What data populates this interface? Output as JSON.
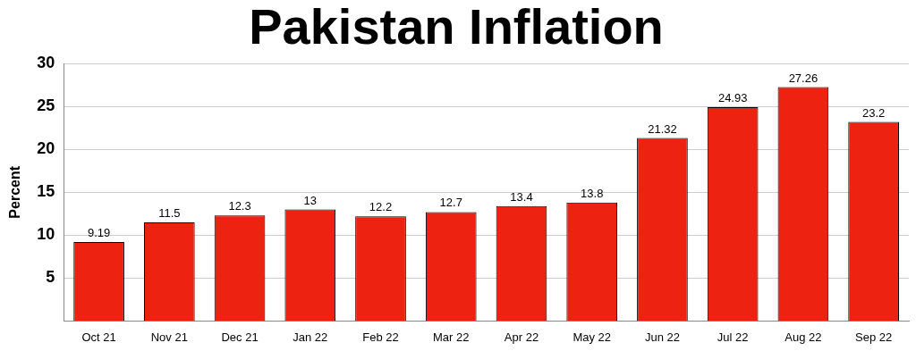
{
  "chart_data": {
    "type": "bar",
    "title": "Pakistan Inflation",
    "y_label": "Percent",
    "categories": [
      "Oct 21",
      "Nov 21",
      "Dec 21",
      "Jan 22",
      "Feb 22",
      "Mar 22",
      "Apr 22",
      "May 22",
      "Jun 22",
      "Jul 22",
      "Aug 22",
      "Sep 22"
    ],
    "values": [
      9.19,
      11.5,
      12.3,
      13,
      12.2,
      12.7,
      13.4,
      13.8,
      21.32,
      24.93,
      27.26,
      23.2
    ],
    "color": "#ee2211",
    "ylim": [
      0,
      30
    ],
    "yticks": [
      5,
      10,
      15,
      20,
      25,
      30
    ],
    "grid": true,
    "data_labels": true
  }
}
